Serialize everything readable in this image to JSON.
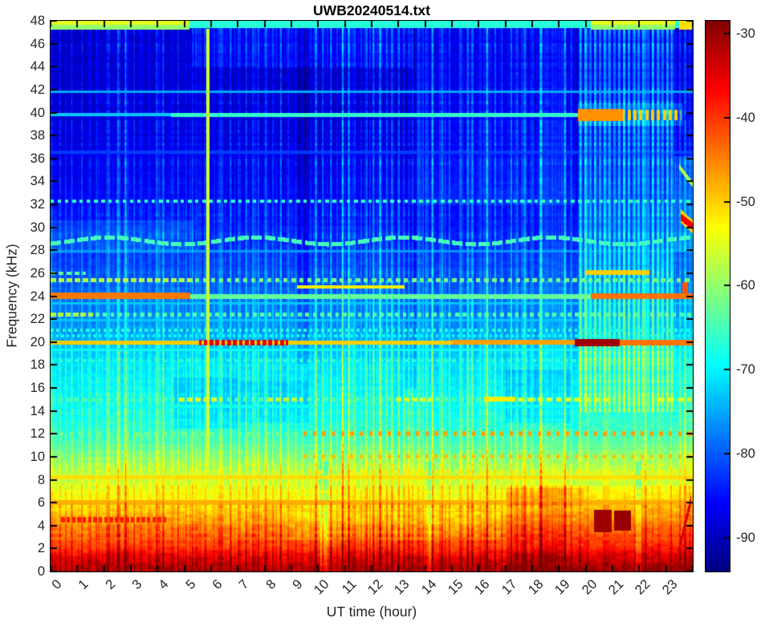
{
  "chart_data": {
    "type": "heatmap",
    "subtype": "spectrogram",
    "title": "UWB20240514.txt",
    "xlabel": "UT time (hour)",
    "ylabel": "Frequency (kHz)",
    "x_range": [
      0,
      24
    ],
    "y_range": [
      0,
      48
    ],
    "xticks": [
      0,
      1,
      2,
      3,
      4,
      5,
      6,
      7,
      8,
      9,
      10,
      11,
      12,
      13,
      14,
      15,
      16,
      17,
      18,
      19,
      20,
      21,
      22,
      23
    ],
    "yticks": [
      0,
      2,
      4,
      6,
      8,
      10,
      12,
      14,
      16,
      18,
      20,
      22,
      24,
      26,
      28,
      30,
      32,
      34,
      36,
      38,
      40,
      42,
      44,
      46,
      48
    ],
    "grid": false,
    "colormap": "jet",
    "colorbar": {
      "ticks": [
        -30,
        -40,
        -50,
        -60,
        -70,
        -80,
        -90
      ],
      "vmax": -28.5,
      "vmin": -94
    },
    "base_profile": {
      "f": [
        0,
        0.7,
        1.5,
        2,
        3,
        4,
        5,
        6,
        7,
        8,
        9,
        10,
        11,
        12,
        14,
        16,
        18,
        19,
        20,
        22,
        24,
        26,
        28,
        30,
        32,
        34,
        36,
        40,
        44,
        48
      ],
      "db": [
        -32,
        -34.5,
        -38,
        -41,
        -44,
        -47,
        -50,
        -53,
        -55.5,
        -57.5,
        -59.5,
        -62,
        -65,
        -67.5,
        -69.5,
        -70.5,
        -72,
        -73.5,
        -75.5,
        -78,
        -80,
        -82,
        -83.5,
        -85,
        -86,
        -87.5,
        -88,
        -89.5,
        -90,
        -90
      ]
    },
    "noise": {
      "seed": 7,
      "amp_by_freq": [
        [
          6,
          3.2
        ],
        [
          10,
          2.4
        ],
        [
          20,
          2.0
        ],
        [
          48,
          1.6
        ]
      ],
      "minor_stripes": 260
    },
    "stripes": [
      [
        0.35,
        3
      ],
      [
        0.55,
        4
      ],
      [
        0.8,
        3
      ],
      [
        1.15,
        5
      ],
      [
        1.45,
        3
      ],
      [
        1.7,
        4
      ],
      [
        2.1,
        3
      ],
      [
        2.5,
        5
      ],
      [
        2.8,
        3
      ],
      [
        3.1,
        4
      ],
      [
        3.4,
        3
      ],
      [
        3.65,
        3
      ],
      [
        3.95,
        3
      ],
      [
        4.2,
        4
      ],
      [
        4.5,
        3
      ],
      [
        4.75,
        6
      ],
      [
        5.05,
        4
      ],
      [
        5.3,
        5
      ],
      [
        5.6,
        3
      ],
      [
        6.1,
        3
      ],
      [
        6.4,
        4
      ],
      [
        6.7,
        3
      ],
      [
        7.0,
        4
      ],
      [
        7.3,
        6
      ],
      [
        7.55,
        3
      ],
      [
        7.75,
        4
      ],
      [
        8.05,
        3
      ],
      [
        8.3,
        5
      ],
      [
        8.6,
        6
      ],
      [
        8.9,
        3
      ],
      [
        9.15,
        3
      ],
      [
        9.9,
        5
      ],
      [
        10.15,
        7
      ],
      [
        10.45,
        6
      ],
      [
        10.7,
        4
      ],
      [
        10.9,
        7
      ],
      [
        11.15,
        4
      ],
      [
        11.35,
        6
      ],
      [
        11.6,
        4
      ],
      [
        11.8,
        7
      ],
      [
        12.05,
        4
      ],
      [
        12.3,
        6
      ],
      [
        12.55,
        4
      ],
      [
        12.75,
        6
      ],
      [
        13.0,
        4
      ],
      [
        13.9,
        5
      ],
      [
        14.25,
        6
      ],
      [
        14.55,
        4
      ],
      [
        14.9,
        4
      ],
      [
        15.3,
        6
      ],
      [
        15.75,
        4
      ],
      [
        16.05,
        4
      ],
      [
        16.3,
        7
      ],
      [
        16.6,
        4
      ],
      [
        16.85,
        4
      ],
      [
        17.2,
        6
      ],
      [
        17.45,
        4
      ],
      [
        17.7,
        4
      ],
      [
        18.0,
        4
      ],
      [
        18.3,
        6
      ],
      [
        18.55,
        4
      ],
      [
        18.75,
        4
      ],
      [
        19.0,
        3
      ],
      [
        19.2,
        5
      ],
      [
        19.45,
        4
      ],
      [
        23.5,
        5
      ],
      [
        23.7,
        4
      ]
    ],
    "stripe_groups": [
      {
        "start": 19.8,
        "end": 23.25,
        "step": 0.18,
        "boost": 8.5,
        "fmin": 14,
        "fmax": 48
      }
    ],
    "features": [
      {
        "t": [
          19.7,
          23.35
        ],
        "f": [
          18,
          47.3
        ],
        "mode": "add",
        "db": 4
      },
      {
        "t": [
          19.7,
          24
        ],
        "f": [
          8,
          18
        ],
        "mode": "add",
        "db": 2
      },
      {
        "t": [
          23.35,
          24
        ],
        "f": [
          18,
          47
        ],
        "mode": "add",
        "db": 2
      },
      {
        "t": [
          5.3,
          13.5
        ],
        "f": [
          44,
          47.4
        ],
        "mode": "add",
        "db": 3.5
      },
      {
        "t": [
          13.4,
          19.6
        ],
        "f": [
          32,
          47.4
        ],
        "mode": "add",
        "db": 2.5
      },
      {
        "t": [
          0,
          5.3
        ],
        "f": [
          27.8,
          30.6
        ],
        "mode": "add",
        "db": 2.5
      },
      {
        "t": [
          4.6,
          6.95
        ],
        "f": [
          12.5,
          16.9
        ],
        "mode": "add",
        "db": -3
      },
      {
        "t": [
          7.05,
          9.6
        ],
        "f": [
          13.0,
          16.6
        ],
        "mode": "add",
        "db": -2.5
      },
      {
        "t": [
          17.0,
          19.45
        ],
        "f": [
          13.0,
          17.6
        ],
        "mode": "add",
        "db": -3
      },
      {
        "t": [
          13.2,
          13.65
        ],
        "f": [
          16,
          48
        ],
        "mode": "add",
        "db": -3
      },
      {
        "t": [
          9.25,
          9.6
        ],
        "f": [
          18,
          48
        ],
        "mode": "add",
        "db": -2.5
      },
      {
        "t": [
          10.08,
          10.35
        ],
        "f": [
          0,
          9.5
        ],
        "mode": "add",
        "db": -6
      },
      {
        "t": [
          14.0,
          14.25
        ],
        "f": [
          0,
          9.5
        ],
        "mode": "add",
        "db": -5
      },
      {
        "t": [
          21.85,
          22.05
        ],
        "f": [
          0,
          9.5
        ],
        "mode": "add",
        "db": -5
      },
      {
        "t": [
          8.8,
          16.8
        ],
        "f": [
          2.8,
          5.2
        ],
        "mode": "add",
        "db": -2
      },
      {
        "t": [
          17.0,
          24
        ],
        "f": [
          0,
          7.5
        ],
        "mode": "add",
        "db": 2.2
      },
      {
        "t": [
          17.0,
          19.9
        ],
        "f": [
          5.8,
          7.3
        ],
        "mode": "add",
        "db": 3
      },
      {
        "t": [
          23.3,
          24
        ],
        "f": [
          28,
          36.2
        ],
        "mode": "add",
        "db": 4
      },
      {
        "t": [
          19.7,
          23.6
        ],
        "f": [
          38.9,
          40.8
        ],
        "mode": "add",
        "db": 5
      },
      {
        "t": [
          0,
          24
        ],
        "f": [
          47.45,
          48
        ],
        "db": -67
      },
      {
        "t": [
          0,
          5.15
        ],
        "f": [
          47.3,
          47.75
        ],
        "db": -60
      },
      {
        "t": [
          0,
          5.15
        ],
        "f": [
          47.75,
          48
        ],
        "db": -55
      },
      {
        "t": [
          20.2,
          23.3
        ],
        "f": [
          47.3,
          47.75
        ],
        "db": -60
      },
      {
        "t": [
          20.2,
          23.3
        ],
        "f": [
          47.75,
          48
        ],
        "db": -55
      },
      {
        "t": [
          23.5,
          23.95
        ],
        "f": [
          47.3,
          48
        ],
        "db": -51
      },
      {
        "t": [
          0,
          24
        ],
        "f": [
          41.75,
          41.95
        ],
        "db": -75
      },
      {
        "t": [
          0,
          24
        ],
        "f": [
          36.5,
          36.68
        ],
        "db": -82
      },
      {
        "t": [
          0,
          4.5
        ],
        "f": [
          39.75,
          39.95
        ],
        "db": -73
      },
      {
        "t": [
          4.5,
          19.7
        ],
        "f": [
          39.72,
          39.98
        ],
        "db": -66
      },
      {
        "t": [
          19.7,
          21.35
        ],
        "f": [
          39.35,
          40.3
        ],
        "db": -46
      },
      {
        "t": [
          21.35,
          23.55
        ],
        "f": [
          39.4,
          40.25
        ],
        "db": -50,
        "dash": [
          0.22,
          0.55
        ]
      },
      {
        "t": [
          0,
          24
        ],
        "f": [
          32.2,
          32.45
        ],
        "db": -66,
        "dash": [
          0.27,
          0.5
        ]
      },
      {
        "type": "wavy",
        "t": [
          0,
          24
        ],
        "fc": 28.85,
        "amp": 0.3,
        "period": 5.5,
        "phase": 0.8,
        "th": 0.3,
        "db": -65,
        "dash": [
          0.5,
          0.8
        ]
      },
      {
        "t": [
          0,
          24
        ],
        "f": [
          27.9,
          28.05
        ],
        "db": -76
      },
      {
        "t": [
          0,
          1.3
        ],
        "f": [
          25.9,
          26.15
        ],
        "db": -63,
        "dash": [
          0.3,
          0.6
        ]
      },
      {
        "t": [
          20.0,
          22.35
        ],
        "f": [
          25.9,
          26.25
        ],
        "db": -50
      },
      {
        "t": [
          0,
          24
        ],
        "f": [
          25.3,
          25.55
        ],
        "db": -62,
        "dash": [
          0.3,
          0.55
        ]
      },
      {
        "t": [
          0,
          5.3
        ],
        "f": [
          25.3,
          25.55
        ],
        "db": -58,
        "dash": [
          0.3,
          0.7
        ]
      },
      {
        "t": [
          9.2,
          13.2
        ],
        "f": [
          24.7,
          24.95
        ],
        "db": -52
      },
      {
        "t": [
          0,
          5.2
        ],
        "f": [
          23.8,
          24.28
        ],
        "db": -44.5
      },
      {
        "t": [
          5.2,
          20.2
        ],
        "f": [
          23.85,
          24.15
        ],
        "db": -63
      },
      {
        "t": [
          20.2,
          24
        ],
        "f": [
          23.8,
          24.22
        ],
        "db": -44
      },
      {
        "t": [
          23.62,
          23.78
        ],
        "f": [
          24.3,
          25.2
        ],
        "db": -42
      },
      {
        "t": [
          0,
          24
        ],
        "f": [
          23.35,
          23.5
        ],
        "db": -73
      },
      {
        "t": [
          0,
          24
        ],
        "f": [
          22.3,
          22.55
        ],
        "db": -64,
        "dash": [
          0.28,
          0.5
        ]
      },
      {
        "t": [
          0,
          1.6
        ],
        "f": [
          22.3,
          22.55
        ],
        "db": -58,
        "dash": [
          0.28,
          0.7
        ]
      },
      {
        "t": [
          0,
          24
        ],
        "f": [
          21.85,
          22.0
        ],
        "db": -73
      },
      {
        "t": [
          0,
          24
        ],
        "f": [
          20.95,
          21.15
        ],
        "db": -67,
        "dash": [
          0.22,
          0.5
        ]
      },
      {
        "t": [
          0,
          24
        ],
        "f": [
          20.5,
          20.7
        ],
        "db": -69,
        "dash": [
          0.2,
          0.5
        ]
      },
      {
        "t": [
          0,
          19.6
        ],
        "f": [
          19.85,
          20.15
        ],
        "db": -50
      },
      {
        "t": [
          15.0,
          19.6
        ],
        "f": [
          19.82,
          20.18
        ],
        "db": -47
      },
      {
        "t": [
          5.55,
          8.85
        ],
        "f": [
          19.78,
          20.22
        ],
        "db": -35,
        "dash": [
          0.22,
          0.62
        ]
      },
      {
        "t": [
          19.6,
          21.25
        ],
        "f": [
          19.72,
          20.28
        ],
        "db": -30.5
      },
      {
        "t": [
          21.25,
          24
        ],
        "f": [
          19.8,
          20.18
        ],
        "db": -44
      },
      {
        "t": [
          0,
          24
        ],
        "f": [
          19.25,
          19.4
        ],
        "db": -69
      },
      {
        "t": [
          0,
          24
        ],
        "f": [
          18.3,
          18.5
        ],
        "db": -67,
        "dash": [
          0.3,
          0.5
        ]
      },
      {
        "t": [
          0,
          24
        ],
        "f": [
          17.95,
          18.1
        ],
        "db": -71
      },
      {
        "t": [
          0,
          24
        ],
        "f": [
          14.9,
          15.15
        ],
        "db": -64,
        "dash": [
          0.3,
          0.5
        ]
      },
      {
        "t": [
          4.7,
          6.4
        ],
        "f": [
          14.9,
          15.18
        ],
        "db": -55,
        "dash": [
          0.3,
          0.7
        ]
      },
      {
        "t": [
          8.0,
          9.4
        ],
        "f": [
          14.9,
          15.18
        ],
        "db": -57,
        "dash": [
          0.3,
          0.7
        ]
      },
      {
        "t": [
          12.8,
          14.4
        ],
        "f": [
          14.9,
          15.18
        ],
        "db": -56,
        "dash": [
          0.3,
          0.7
        ]
      },
      {
        "t": [
          16.2,
          17.35
        ],
        "f": [
          14.88,
          15.2
        ],
        "db": -52
      },
      {
        "t": [
          17.5,
          21.0
        ],
        "f": [
          14.9,
          15.18
        ],
        "db": -55,
        "dash": [
          0.35,
          0.55
        ]
      },
      {
        "t": [
          22.7,
          23.9
        ],
        "f": [
          14.9,
          15.18
        ],
        "db": -55,
        "dash": [
          0.35,
          0.6
        ]
      },
      {
        "t": [
          0,
          24
        ],
        "f": [
          14.35,
          14.5
        ],
        "db": -69
      },
      {
        "t": [
          0,
          9.4
        ],
        "f": [
          11.9,
          12.18
        ],
        "db": -62,
        "dash": [
          0.35,
          0.4
        ]
      },
      {
        "t": [
          9.4,
          24
        ],
        "f": [
          11.88,
          12.2
        ],
        "db": -47,
        "dash": [
          0.35,
          0.38
        ]
      },
      {
        "t": [
          0,
          9.4
        ],
        "f": [
          9.98,
          10.18
        ],
        "db": -61,
        "dash": [
          0.35,
          0.4
        ]
      },
      {
        "t": [
          9.4,
          24
        ],
        "f": [
          9.95,
          10.2
        ],
        "db": -49,
        "dash": [
          0.35,
          0.32
        ]
      },
      {
        "t": [
          9.0,
          24
        ],
        "f": [
          8.6,
          8.82
        ],
        "db": -52,
        "dash": [
          0.4,
          0.35
        ]
      },
      {
        "t": [
          0,
          24
        ],
        "f": [
          8.1,
          8.4
        ],
        "db": -51
      },
      {
        "t": [
          0,
          24
        ],
        "f": [
          6.9,
          7.08
        ],
        "db": -54
      },
      {
        "t": [
          0,
          24
        ],
        "f": [
          5.9,
          6.2
        ],
        "db": -48
      },
      {
        "t": [
          0.4,
          4.35
        ],
        "f": [
          4.3,
          4.75
        ],
        "db": -38.5,
        "dash": [
          0.2,
          0.65
        ]
      },
      {
        "t": [
          20.3,
          20.95
        ],
        "f": [
          3.5,
          5.4
        ],
        "db": -30.5
      },
      {
        "t": [
          21.05,
          21.65
        ],
        "f": [
          3.6,
          5.3
        ],
        "db": -30
      },
      {
        "t": [
          5.82,
          5.9
        ],
        "f": [
          3,
          47.3
        ],
        "db": -56
      },
      {
        "type": "slant",
        "p0": [
          23.45,
          1.8
        ],
        "p1": [
          23.9,
          6.2
        ],
        "th": 0.8,
        "db": -34
      },
      {
        "type": "slant",
        "p0": [
          23.5,
          35.3
        ],
        "p1": [
          24,
          33.8
        ],
        "th": 0.4,
        "db": -58
      },
      {
        "type": "slant",
        "p0": [
          23.55,
          31.0
        ],
        "p1": [
          24,
          30.1
        ],
        "th": 1.1,
        "db": -50
      },
      {
        "type": "slant",
        "p0": [
          23.55,
          30.9
        ],
        "p1": [
          24,
          30.15
        ],
        "th": 0.55,
        "db": -36
      }
    ]
  }
}
